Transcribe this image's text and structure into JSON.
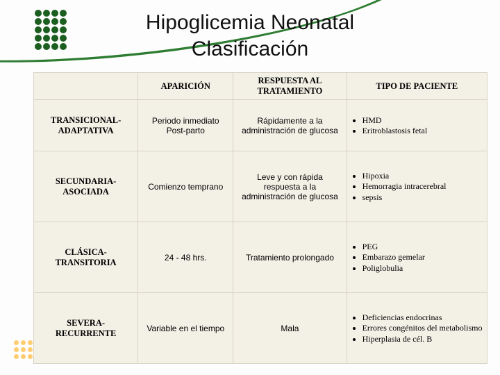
{
  "title_line1": "Hipoglicemia Neonatal",
  "title_line2": "Clasificación",
  "table": {
    "headers": [
      "",
      "APARICIÓN",
      "RESPUESTA AL TRATAMIENTO",
      "TIPO DE PACIENTE"
    ],
    "rows": [
      {
        "label": "TRANSICIONAL-\nADAPTATIVA",
        "aparicion": "Periodo inmediato Post-parto",
        "respuesta": "Rápidamente a la administración de glucosa",
        "tipos": [
          "HMD",
          "Eritroblastosis fetal"
        ]
      },
      {
        "label": "SECUNDARIA-\nASOCIADA",
        "aparicion": "Comienzo temprano",
        "respuesta": "Leve y con rápida respuesta a la administración de glucosa",
        "tipos": [
          "Hipoxia",
          "Hemorragia intracerebral",
          "sepsis"
        ]
      },
      {
        "label": "CLÁSICA-\nTRANSITORIA",
        "aparicion": "24 - 48 hrs.",
        "respuesta": "Tratamiento prolongado",
        "tipos": [
          "PEG",
          "Embarazo gemelar",
          "Poliglobulia"
        ]
      },
      {
        "label": "SEVERA-\nRECURRENTE",
        "aparicion": "Variable en el tiempo",
        "respuesta": "Mala",
        "tipos": [
          "Deficiencias endocrinas",
          "Errores congénitos del metabolismo",
          "Hiperplasia de cél. B"
        ]
      }
    ]
  },
  "colors": {
    "swoosh": "#2e7d32",
    "dot": "#1b5e20",
    "table_bg": "#f3f0e6",
    "border": "#d8d3c2",
    "side_dot": "rgba(255,165,0,0.55)"
  }
}
